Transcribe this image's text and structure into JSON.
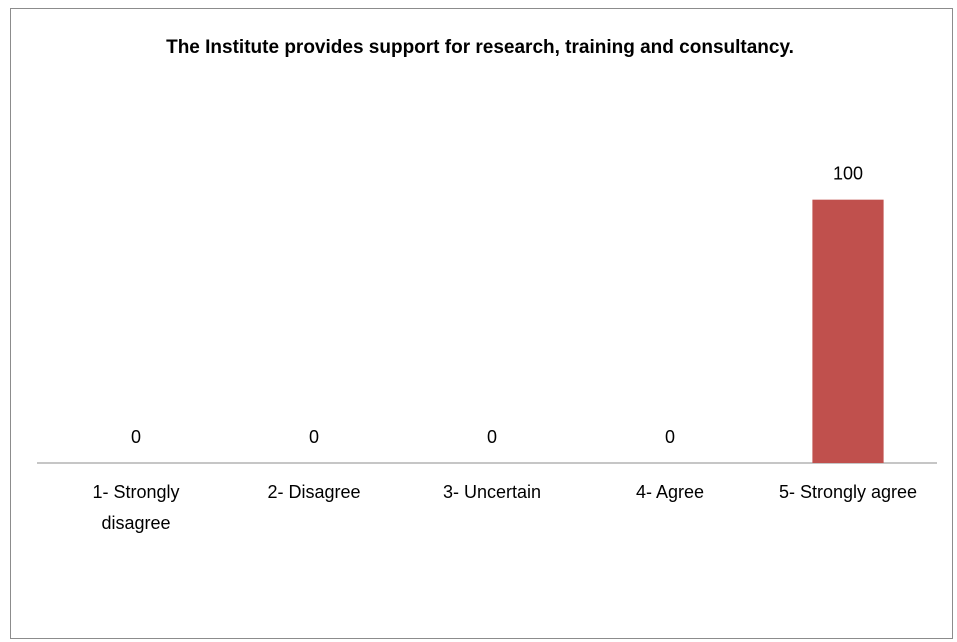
{
  "chart_data": {
    "type": "bar",
    "title": "The Institute provides support for research, training and consultancy.",
    "categories": [
      "1- Strongly disagree",
      "2- Disagree",
      "3- Uncertain",
      "4- Agree",
      "5- Strongly agree"
    ],
    "values": [
      0,
      0,
      0,
      0,
      100
    ],
    "color": "#c0504d",
    "ylim": [
      0,
      120
    ]
  }
}
